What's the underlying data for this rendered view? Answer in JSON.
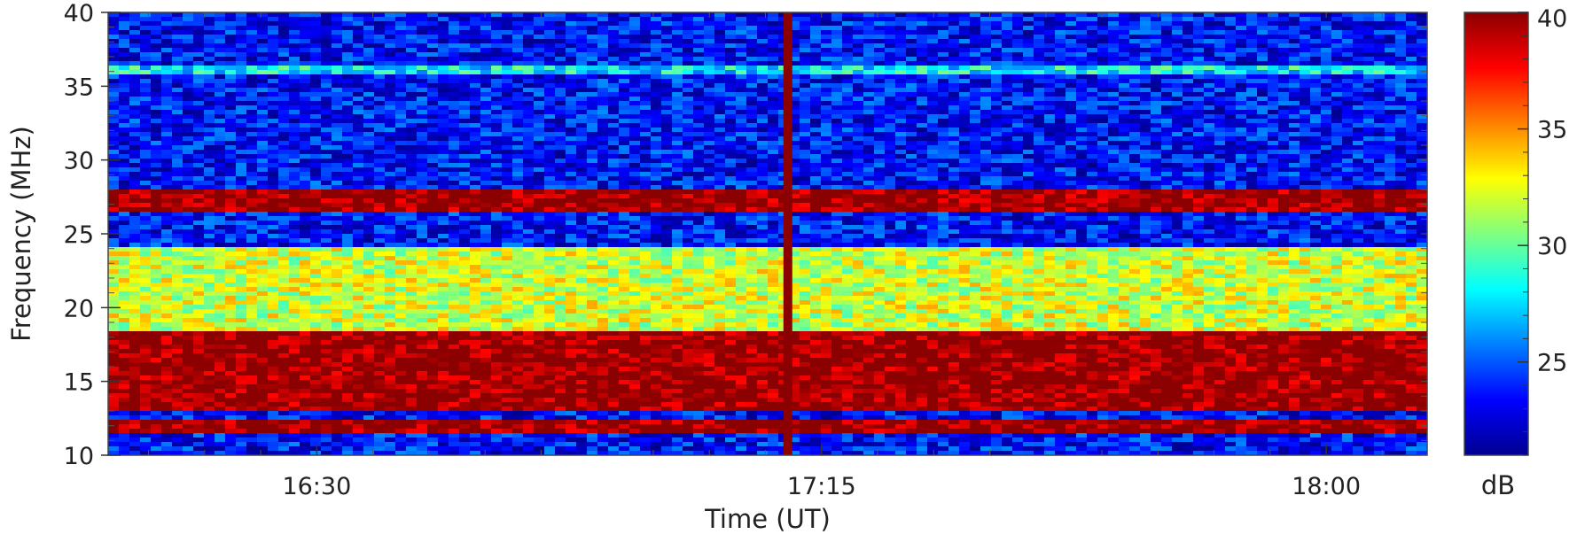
{
  "chart_data": {
    "type": "heatmap",
    "title": "",
    "xlabel": "Time (UT)",
    "ylabel": "Frequency (MHz)",
    "x_ticks": [
      {
        "value": 16.5,
        "label": "16:30"
      },
      {
        "value": 17.25,
        "label": "17:15"
      },
      {
        "value": 18.0,
        "label": "18:00"
      }
    ],
    "y_ticks": [
      10,
      15,
      20,
      25,
      30,
      35,
      40
    ],
    "xlim": [
      16.19,
      18.15
    ],
    "ylim": [
      10,
      40
    ],
    "colorbar": {
      "label": "dB",
      "range": [
        21,
        40
      ],
      "ticks": [
        25,
        30,
        35,
        40
      ],
      "colormap": [
        "#00008f",
        "#0000ff",
        "#0080ff",
        "#00ffff",
        "#80ff80",
        "#ffff00",
        "#ff8000",
        "#ff0000",
        "#8b0000"
      ]
    },
    "features": [
      {
        "type": "broadband_burst",
        "time": 17.2,
        "freq_range": [
          10,
          40
        ],
        "intensity_db": 40
      },
      {
        "type": "interference_band",
        "freq_range": [
          26.5,
          28.0
        ],
        "intensity_db": 40
      },
      {
        "type": "interference_band",
        "freq_range": [
          13.0,
          18.5
        ],
        "intensity_db": 40
      },
      {
        "type": "interference_band",
        "freq_range": [
          11.5,
          12.5
        ],
        "intensity_db": 40
      },
      {
        "type": "elevated_band",
        "freq_range": [
          18.5,
          24.0
        ],
        "intensity_db": 32
      },
      {
        "type": "interference_line",
        "freq": 36.0,
        "intensity_db": 28
      }
    ]
  }
}
